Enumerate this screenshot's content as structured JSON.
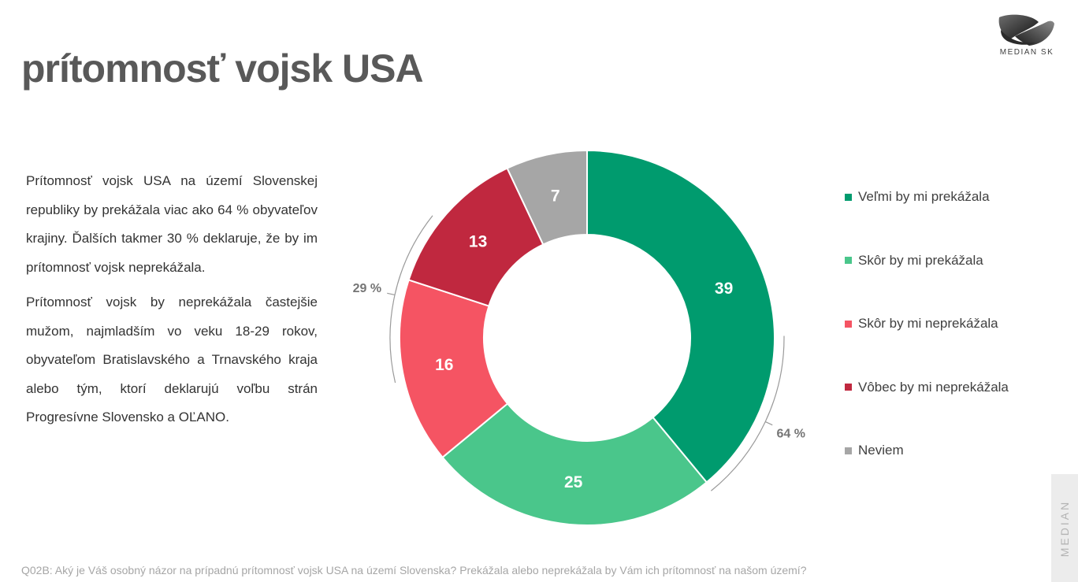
{
  "title": "prítomnosť vojsk USA",
  "logo": {
    "text": "MEDIAN SK"
  },
  "text": {
    "paragraph1": "Prítomnosť vojsk USA na území Slovenskej republiky by prekážala viac ako 64 % obyvateľov krajiny. Ďalších takmer 30 % deklaruje, že by im prítomnosť vojsk neprekážala.",
    "paragraph2": "Prítomnosť vojsk by neprekážala častejšie mužom, najmladším vo veku 18-29 rokov, obyvateľom Bratislavského a Trnavského kraja alebo tým, ktorí deklarujú voľbu strán Progresívne Slovensko a OĽANO."
  },
  "chart_data": {
    "type": "pie",
    "variant": "donut",
    "categories": [
      "Veľmi by mi prekážala",
      "Skôr by mi prekážala",
      "Skôr by mi neprekážala",
      "Vôbec by mi neprekážala",
      "Neviem"
    ],
    "values": [
      39,
      25,
      16,
      13,
      7
    ],
    "colors": [
      "#009b6e",
      "#4ac68b",
      "#f55463",
      "#c0283f",
      "#a6a6a6"
    ],
    "legend_position": "right",
    "annotations": [
      {
        "text": "64 %",
        "series": [
          "Veľmi by mi prekážala",
          "Skôr by mi prekážala"
        ]
      },
      {
        "text": "29 %",
        "series": [
          "Skôr by mi neprekážala",
          "Vôbec by mi neprekážala"
        ]
      }
    ]
  },
  "footer": "Q02B: Aký je Váš osobný názor na prípadnú prítomnosť vojsk USA na území Slovenska? Prekážala alebo neprekážala by Vám ich prítomnosť na našom území?",
  "side_tab": "MEDIAN"
}
